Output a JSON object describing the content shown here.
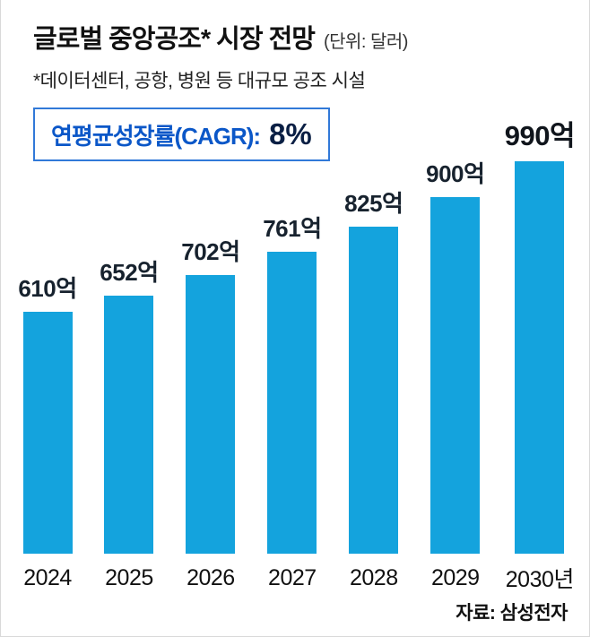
{
  "header": {
    "title": "글로벌 중앙공조* 시장 전망",
    "unit": "(단위: 달러)",
    "footnote": "*데이터센터, 공항, 병원 등 대규모 공조 시설"
  },
  "cagr": {
    "label": "연평균성장률(CAGR):",
    "value": "8%"
  },
  "chart_data": {
    "type": "bar",
    "title": "글로벌 중앙공조* 시장 전망",
    "unit_label": "(단위: 달러)",
    "categories": [
      "2024",
      "2025",
      "2026",
      "2027",
      "2028",
      "2029",
      "2030년"
    ],
    "values": [
      610,
      652,
      702,
      761,
      825,
      900,
      990
    ],
    "value_labels": [
      "610억",
      "652억",
      "702억",
      "761억",
      "825억",
      "900억",
      "990억"
    ],
    "annotation": "연평균성장률(CAGR): 8%",
    "ylim": [
      0,
      990
    ],
    "bar_color": "#14a3dd",
    "grid": false,
    "legend": "none"
  },
  "source": "자료: 삼성전자"
}
